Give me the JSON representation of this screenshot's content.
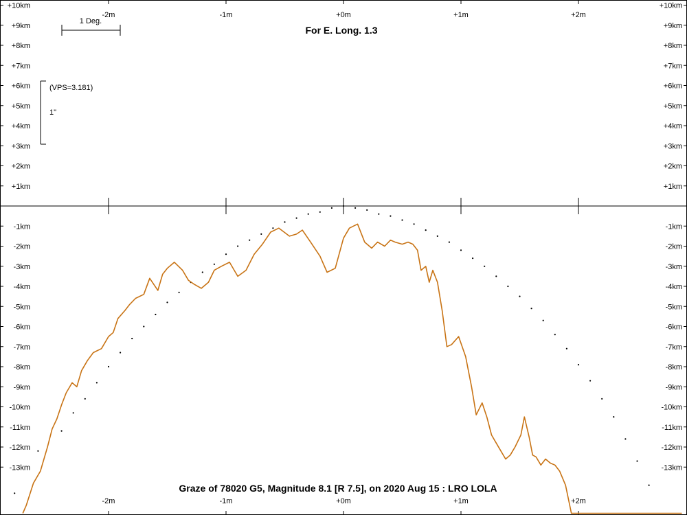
{
  "chart_data": {
    "type": "line",
    "title": "For E. Long. 1.3",
    "caption": "Graze of  78020 G5,  Magnitude 8.1 [R 7.5],  on 2020 Aug 15  :  LRO LOLA",
    "scale_bar_label": "1 Deg.",
    "vps_label": "(VPS=3.181)",
    "vscale_label": "1\"",
    "x_unit": "minutes",
    "y_unit": "km",
    "xlim": [
      -2.88,
      2.88
    ],
    "ylim": [
      -15.3,
      10
    ],
    "x_ticks": [
      {
        "value": -2,
        "label": "-2m"
      },
      {
        "value": -1,
        "label": "-1m"
      },
      {
        "value": 0,
        "label": "+0m"
      },
      {
        "value": 1,
        "label": "+1m"
      },
      {
        "value": 2,
        "label": "+2m"
      }
    ],
    "y_ticks_left": [
      {
        "value": 10,
        "label": "+10km"
      },
      {
        "value": 9,
        "label": "+9km"
      },
      {
        "value": 8,
        "label": "+8km"
      },
      {
        "value": 7,
        "label": "+7km"
      },
      {
        "value": 6,
        "label": "+6km"
      },
      {
        "value": 5,
        "label": "+5km"
      },
      {
        "value": 4,
        "label": "+4km"
      },
      {
        "value": 3,
        "label": "+3km"
      },
      {
        "value": 2,
        "label": "+2km"
      },
      {
        "value": 1,
        "label": "+1km"
      },
      {
        "value": -1,
        "label": "-1km"
      },
      {
        "value": -2,
        "label": "-2km"
      },
      {
        "value": -3,
        "label": "-3km"
      },
      {
        "value": -4,
        "label": "-4km"
      },
      {
        "value": -5,
        "label": "-5km"
      },
      {
        "value": -6,
        "label": "-6km"
      },
      {
        "value": -7,
        "label": "-7km"
      },
      {
        "value": -8,
        "label": "-8km"
      },
      {
        "value": -9,
        "label": "-9km"
      },
      {
        "value": -10,
        "label": "-10km"
      },
      {
        "value": -11,
        "label": "-11km"
      },
      {
        "value": -12,
        "label": "-12km"
      },
      {
        "value": -13,
        "label": "-13km"
      }
    ],
    "y_ticks_right": [
      {
        "value": 10,
        "label": "+10km"
      },
      {
        "value": 9,
        "label": "+9km"
      },
      {
        "value": 8,
        "label": "+8km"
      },
      {
        "value": 7,
        "label": "+7km"
      },
      {
        "value": 6,
        "label": "+6km"
      },
      {
        "value": 5,
        "label": "+5km"
      },
      {
        "value": 4,
        "label": "+4km"
      },
      {
        "value": 3,
        "label": "+3km"
      },
      {
        "value": 2,
        "label": "+2km"
      },
      {
        "value": 1,
        "label": "+1km"
      },
      {
        "value": -1,
        "label": "-1km"
      },
      {
        "value": -2,
        "label": "-2km"
      },
      {
        "value": -3,
        "label": "-3km"
      },
      {
        "value": -4,
        "label": "-4km"
      },
      {
        "value": -5,
        "label": "-5km"
      },
      {
        "value": -6,
        "label": "-6km"
      },
      {
        "value": -7,
        "label": "-7km"
      },
      {
        "value": -8,
        "label": "-8km"
      },
      {
        "value": -9,
        "label": "-9km"
      },
      {
        "value": -10,
        "label": "-10km"
      },
      {
        "value": -11,
        "label": "-11km"
      },
      {
        "value": -12,
        "label": "-12km"
      },
      {
        "value": -13,
        "label": "-13km"
      }
    ],
    "series": [
      {
        "color": "#c87314",
        "style": "line",
        "x": [
          -2.73,
          -2.7,
          -2.64,
          -2.58,
          -2.52,
          -2.48,
          -2.44,
          -2.4,
          -2.36,
          -2.31,
          -2.27,
          -2.23,
          -2.18,
          -2.13,
          -2.06,
          -2.0,
          -1.96,
          -1.92,
          -1.86,
          -1.82,
          -1.77,
          -1.7,
          -1.65,
          -1.58,
          -1.54,
          -1.5,
          -1.44,
          -1.37,
          -1.32,
          -1.27,
          -1.21,
          -1.15,
          -1.1,
          -1.04,
          -0.97,
          -0.9,
          -0.83,
          -0.76,
          -0.69,
          -0.62,
          -0.55,
          -0.46,
          -0.4,
          -0.35,
          -0.28,
          -0.2,
          -0.14,
          -0.07,
          0,
          0.05,
          0.12,
          0.18,
          0.24,
          0.29,
          0.35,
          0.4,
          0.44,
          0.5,
          0.55,
          0.59,
          0.63,
          0.66,
          0.7,
          0.73,
          0.76,
          0.8,
          0.84,
          0.88,
          0.92,
          0.98,
          1.04,
          1.09,
          1.13,
          1.18,
          1.22,
          1.26,
          1.3,
          1.34,
          1.38,
          1.42,
          1.44,
          1.46,
          1.51,
          1.54,
          1.58,
          1.61,
          1.64,
          1.68,
          1.72,
          1.76,
          1.8,
          1.84,
          1.89,
          1.94,
          1.99,
          2.03,
          2.08,
          2.13,
          2.18,
          2.23,
          2.28,
          2.33,
          2.37,
          2.41,
          2.47,
          2.52,
          2.57,
          2.6,
          2.63,
          2.68,
          2.73,
          2.77,
          2.82,
          2.85,
          2.88
        ],
        "y": [
          -15.3,
          -14.9,
          -13.8,
          -13.2,
          -12.0,
          -11.1,
          -10.6,
          -9.9,
          -9.3,
          -8.8,
          -9.0,
          -8.2,
          -7.7,
          -7.3,
          -7.1,
          -6.5,
          -6.3,
          -5.6,
          -5.2,
          -4.9,
          -4.6,
          -4.4,
          -3.6,
          -4.2,
          -3.4,
          -3.1,
          -2.8,
          -3.2,
          -3.7,
          -3.9,
          -4.1,
          -3.8,
          -3.2,
          -3.0,
          -2.8,
          -3.5,
          -3.2,
          -2.4,
          -1.9,
          -1.3,
          -1.1,
          -1.5,
          -1.4,
          -1.2,
          -1.8,
          -2.5,
          -3.3,
          -3.1,
          -1.6,
          -1.1,
          -0.9,
          -1.8,
          -2.1,
          -1.8,
          -2.0,
          -1.7,
          -1.8,
          -1.9,
          -1.8,
          -1.9,
          -2.2,
          -3.2,
          -3.0,
          -3.8,
          -3.2,
          -3.8,
          -5.2,
          -7.0,
          -6.9,
          -6.5,
          -7.5,
          -9.0,
          -10.4,
          -9.8,
          -10.5,
          -11.4,
          -11.8,
          -12.2,
          -12.6,
          -12.4,
          -12.2,
          -12.0,
          -11.4,
          -10.5,
          -11.5,
          -12.4,
          -12.5,
          -12.9,
          -12.6,
          -12.8,
          -12.9,
          -13.2,
          -13.9,
          -15.3,
          -15.3,
          -15.3,
          -15.3,
          -15.3,
          -15.3,
          -15.3,
          -15.3,
          -15.3,
          -15.3,
          -15.3,
          -15.3,
          -15.3,
          -15.3,
          -15.3,
          -15.3,
          -15.3,
          -15.3,
          -15.3,
          -15.3,
          -15.3,
          -15.3
        ]
      },
      {
        "color": "#000000",
        "style": "dots",
        "x": [
          -2.8,
          -2.6,
          -2.4,
          -2.3,
          -2.2,
          -2.1,
          -2.0,
          -1.9,
          -1.8,
          -1.7,
          -1.6,
          -1.5,
          -1.4,
          -1.3,
          -1.2,
          -1.1,
          -1.0,
          -0.9,
          -0.8,
          -0.7,
          -0.6,
          -0.5,
          -0.4,
          -0.3,
          -0.2,
          -0.1,
          0,
          0.1,
          0.2,
          0.3,
          0.4,
          0.5,
          0.6,
          0.7,
          0.8,
          0.9,
          1.0,
          1.1,
          1.2,
          1.3,
          1.4,
          1.5,
          1.6,
          1.7,
          1.8,
          1.9,
          2.0,
          2.1,
          2.2,
          2.3,
          2.4,
          2.5,
          2.6
        ],
        "y": [
          -14.3,
          -12.2,
          -11.2,
          -10.3,
          -9.6,
          -8.8,
          -8.0,
          -7.3,
          -6.6,
          -6.0,
          -5.4,
          -4.8,
          -4.3,
          -3.8,
          -3.3,
          -2.9,
          -2.4,
          -2.0,
          -1.7,
          -1.4,
          -1.1,
          -0.8,
          -0.6,
          -0.4,
          -0.3,
          -0.1,
          0,
          -0.1,
          -0.2,
          -0.4,
          -0.5,
          -0.7,
          -0.9,
          -1.2,
          -1.5,
          -1.8,
          -2.2,
          -2.6,
          -3.0,
          -3.5,
          -4.0,
          -4.5,
          -5.1,
          -5.7,
          -6.4,
          -7.1,
          -7.9,
          -8.7,
          -9.6,
          -10.5,
          -11.6,
          -12.7,
          -13.9
        ]
      }
    ]
  }
}
